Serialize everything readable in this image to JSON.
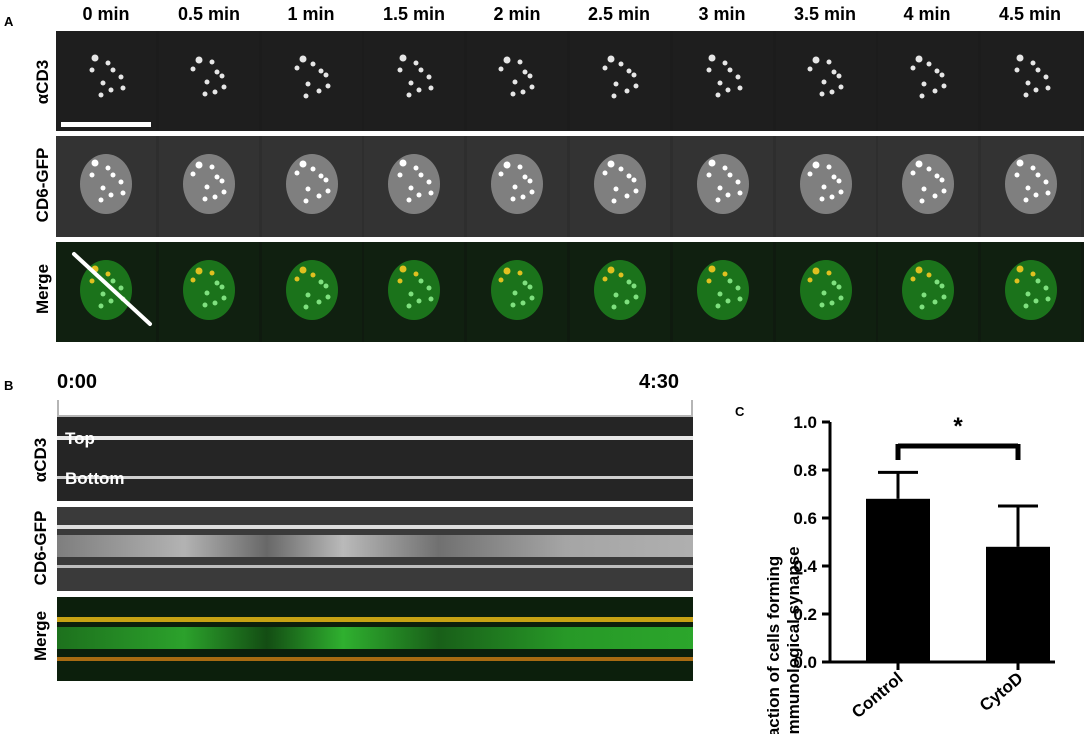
{
  "panel_a": {
    "letter": "A",
    "timepoints": [
      "0 min",
      "0.5 min",
      "1 min",
      "1.5 min",
      "2 min",
      "2.5 min",
      "3 min",
      "3.5 min",
      "4 min",
      "4.5 min"
    ],
    "rows": [
      "αCD3",
      "CD6-GFP",
      "Merge"
    ]
  },
  "panel_b": {
    "letter": "B",
    "time_start": "0:00",
    "time_end": "4:30",
    "rows": [
      "αCD3",
      "CD6-GFP",
      "Merge"
    ],
    "top_label": "Top",
    "bottom_label": "Bottom"
  },
  "panel_c": {
    "letter": "C"
  },
  "chart_data": {
    "type": "bar",
    "categories": [
      "Control",
      "CytoD"
    ],
    "values": [
      0.68,
      0.48
    ],
    "error_upper": [
      0.79,
      0.65
    ],
    "ylabel": "Fraction of cells forming an immunological  synapse",
    "ylabel_line1": "Fraction of cells forming",
    "ylabel_line2": "an immunological  synapse",
    "ylim": [
      0,
      1.0
    ],
    "yticks": [
      "0.0",
      "0.2",
      "0.4",
      "0.6",
      "0.8",
      "1.0"
    ],
    "significance": "*",
    "bar_color": "#000000"
  }
}
